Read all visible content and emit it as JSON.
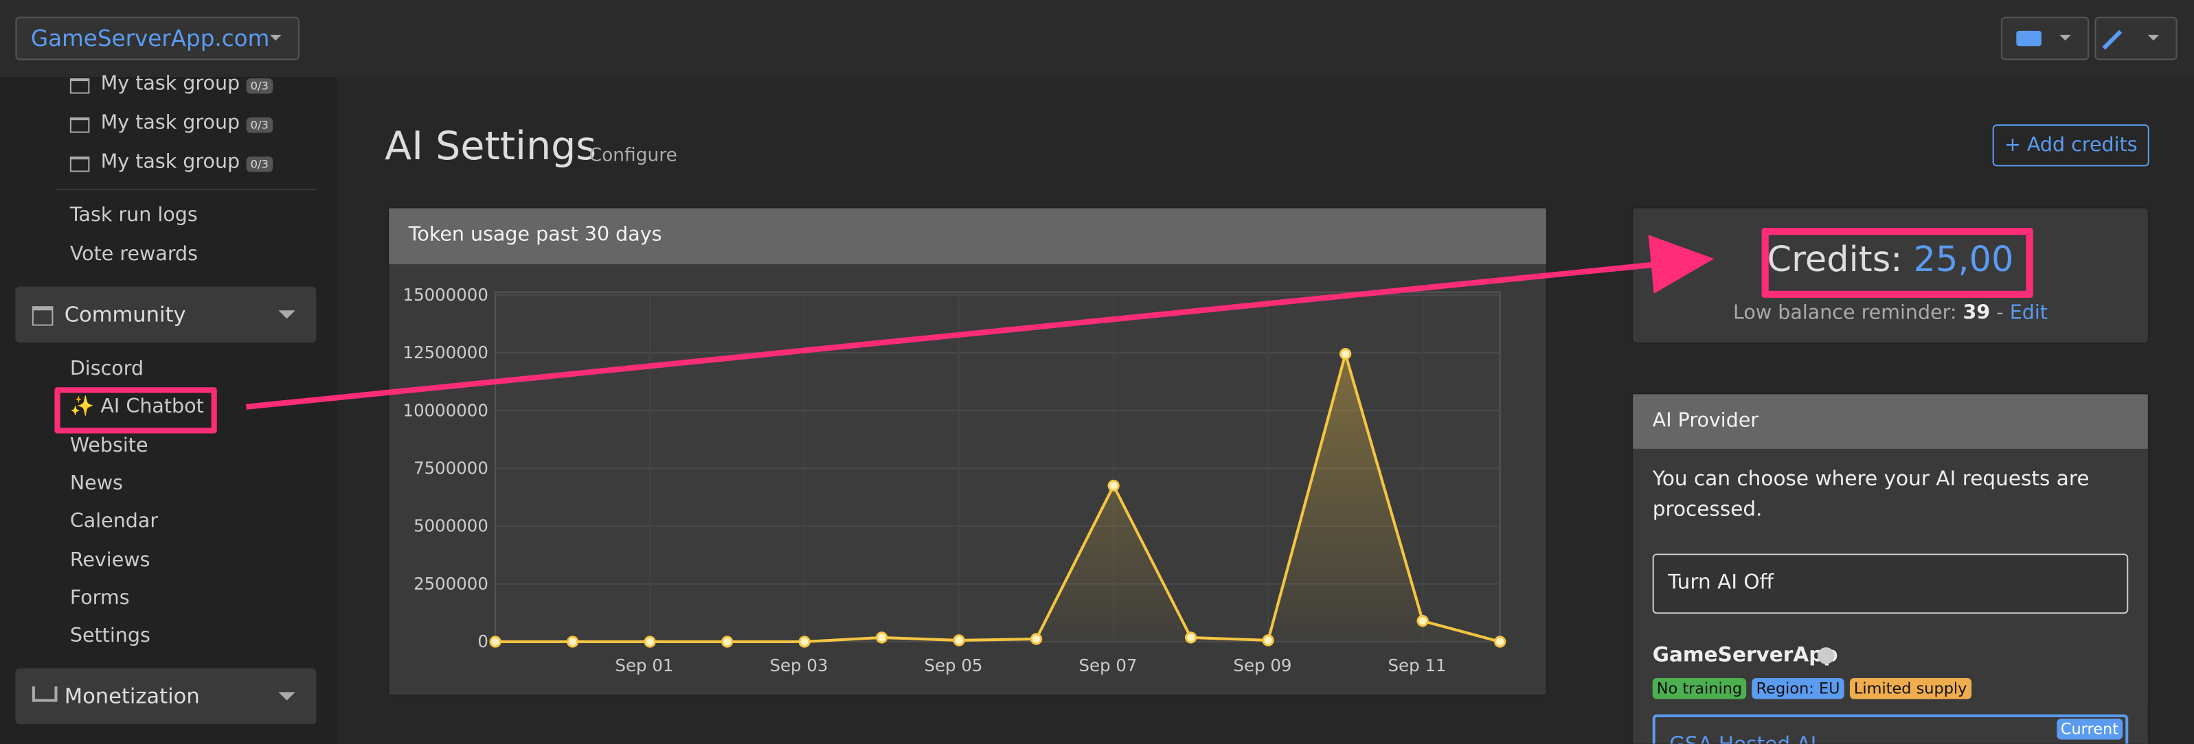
{
  "header": {
    "site": "GameServerApp.com"
  },
  "sidebar": {
    "task_groups": [
      {
        "label": "My task group",
        "badge": "0/3"
      },
      {
        "label": "My task group",
        "badge": "0/3"
      },
      {
        "label": "My task group",
        "badge": "0/3"
      }
    ],
    "links": [
      "Task run logs",
      "Vote rewards"
    ],
    "community": {
      "title": "Community",
      "items": [
        "Discord",
        "✨ AI Chatbot",
        "Website",
        "News",
        "Calendar",
        "Reviews",
        "Forms",
        "Settings"
      ]
    },
    "monetization": {
      "title": "Monetization"
    }
  },
  "page": {
    "title": "AI Settings",
    "subtitle": "Configure",
    "add_credits": "+ Add credits"
  },
  "credits": {
    "label": "Credits:",
    "amount": "25,00",
    "reminder_label": "Low balance reminder:",
    "reminder_value": 39,
    "separator": "-",
    "edit": "Edit"
  },
  "provider": {
    "title": "AI Provider",
    "description": "You can choose where your AI requests are processed.",
    "off_option": "Turn AI Off",
    "group": "GameServerApp",
    "badges": [
      "No training",
      "Region: EU",
      "Limited supply"
    ],
    "option": "GSA Hosted AI",
    "option_badge": "Current"
  },
  "chart_data": {
    "type": "line",
    "title": "Token usage past 30 days",
    "color": "#f5c542",
    "categories": [
      null,
      null,
      "Sep 01",
      null,
      "Sep 03",
      null,
      "Sep 05",
      null,
      "Sep 07",
      null,
      "Sep 09",
      null,
      "Sep 11",
      null
    ],
    "values": [
      0,
      0,
      0,
      0,
      0,
      180000,
      60000,
      120000,
      6750000,
      180000,
      60000,
      12450000,
      900000,
      0
    ],
    "ylim": [
      0,
      15000000
    ],
    "yticks": [
      0,
      2500000,
      5000000,
      7500000,
      10000000,
      12500000,
      15000000
    ],
    "grid": true
  }
}
